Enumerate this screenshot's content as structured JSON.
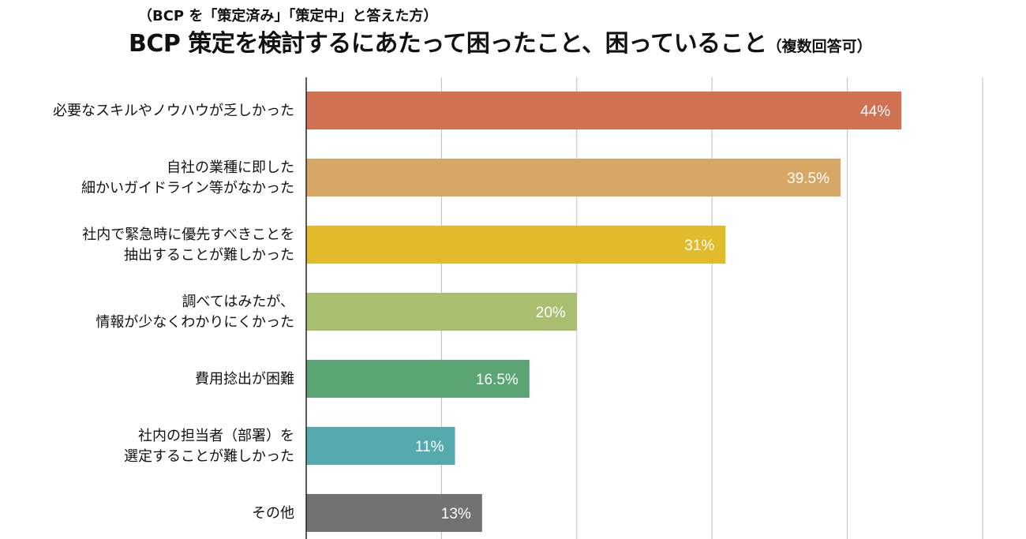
{
  "header": {
    "subtitle": "（BCP を「策定済み」「策定中」と答えた方）",
    "title": "BCP 策定を検討するにあたって困ったこと、困っていること",
    "title_note": "（複数回答可）"
  },
  "chart_data": {
    "type": "bar",
    "orientation": "horizontal",
    "xlim": [
      0,
      50
    ],
    "grid": true,
    "categories": [
      [
        "必要なスキルやノウハウが乏しかった"
      ],
      [
        "自社の業種に即した",
        "細かいガイドライン等がなかった"
      ],
      [
        "社内で緊急時に優先すべきことを",
        "抽出することが難しかった"
      ],
      [
        "調べてはみたが、",
        "情報が少なくわかりにくかった"
      ],
      [
        "費用捻出が困難"
      ],
      [
        "社内の担当者（部署）を",
        "選定することが難しかった"
      ],
      [
        "その他"
      ]
    ],
    "values": [
      44,
      39.5,
      31,
      20,
      16.5,
      11,
      13
    ],
    "value_labels": [
      "44%",
      "39.5%",
      "31%",
      "20%",
      "16.5%",
      "11%",
      "13%"
    ],
    "colors": [
      "#cf7152",
      "#d7a865",
      "#e1bb2c",
      "#a8bf70",
      "#5aa573",
      "#54aaad",
      "#727272"
    ]
  }
}
